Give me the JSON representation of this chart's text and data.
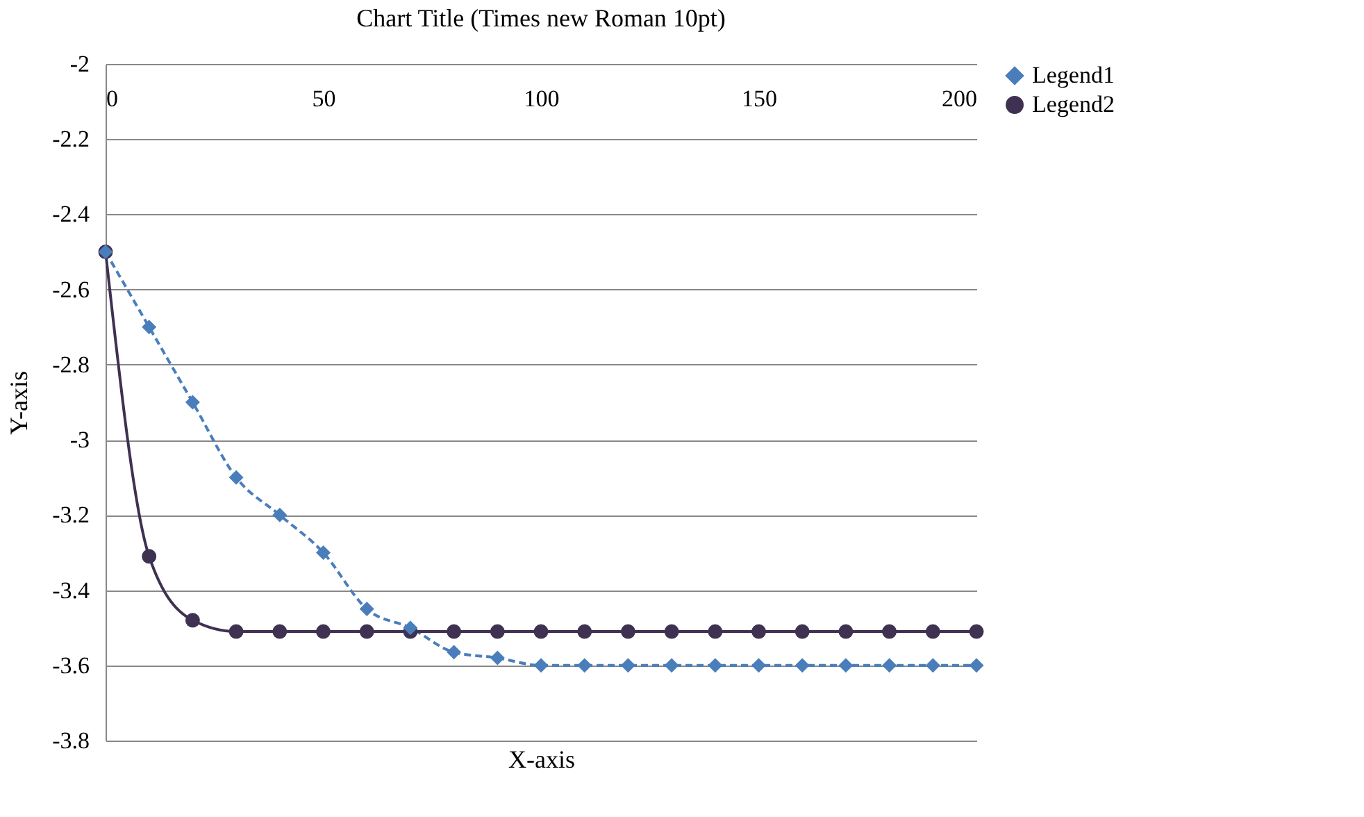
{
  "chart_data": {
    "type": "line",
    "title": "Chart Title (Times new Roman 10pt)",
    "xlabel": "X-axis",
    "ylabel": "Y-axis",
    "x": [
      0,
      10,
      20,
      30,
      40,
      50,
      60,
      70,
      80,
      90,
      100,
      110,
      120,
      130,
      140,
      150,
      160,
      170,
      180,
      190,
      200
    ],
    "series": [
      {
        "name": "Legend1",
        "color": "#4a7ebb",
        "marker": "diamond",
        "line_style": "dashed",
        "values": [
          -2.5,
          -2.7,
          -2.9,
          -3.1,
          -3.2,
          -3.3,
          -3.45,
          -3.5,
          -3.565,
          -3.58,
          -3.6,
          -3.6,
          -3.6,
          -3.6,
          -3.6,
          -3.6,
          -3.6,
          -3.6,
          -3.6,
          -3.6,
          -3.6
        ]
      },
      {
        "name": "Legend2",
        "color": "#3f3151",
        "marker": "circle",
        "line_style": "solid",
        "values": [
          -2.5,
          -3.31,
          -3.48,
          -3.51,
          -3.51,
          -3.51,
          -3.51,
          -3.51,
          -3.51,
          -3.51,
          -3.51,
          -3.51,
          -3.51,
          -3.51,
          -3.51,
          -3.51,
          -3.51,
          -3.51,
          -3.51,
          -3.51,
          -3.51
        ]
      }
    ],
    "xlim": [
      0,
      200
    ],
    "xticks": [
      0,
      50,
      100,
      150,
      200
    ],
    "ylim": [
      -3.8,
      -2
    ],
    "yticks": [
      -2,
      -2.2,
      -2.4,
      -2.6,
      -2.8,
      -3,
      -3.2,
      -3.4,
      -3.6,
      -3.8
    ],
    "grid": "y",
    "legend": "right"
  }
}
